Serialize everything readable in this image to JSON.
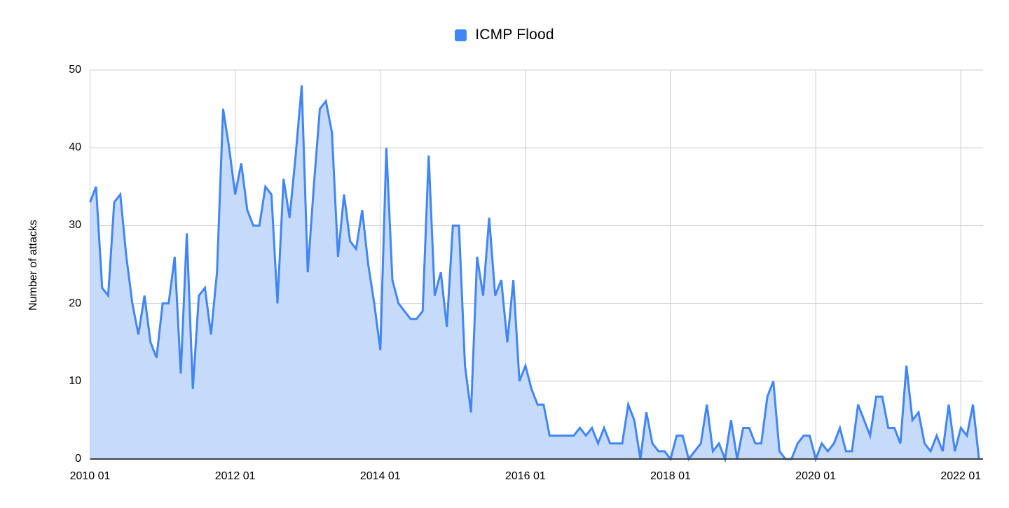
{
  "legend": {
    "label": "ICMP Flood",
    "swatch_color": "#4285f4"
  },
  "y_axis": {
    "title": "Number of attacks",
    "ticks": [
      0,
      10,
      20,
      30,
      40,
      50
    ]
  },
  "x_axis": {
    "ticks": [
      "2010 01",
      "2012 01",
      "2014 01",
      "2016 01",
      "2018 01",
      "2020 01",
      "2022 01"
    ]
  },
  "colors": {
    "line": "#4285f4",
    "fill": "#c6dafc",
    "grid": "#cccccc",
    "baseline": "#424242",
    "text": "#000000"
  },
  "chart_data": {
    "type": "area",
    "title": "ICMP Flood",
    "xlabel": "",
    "ylabel": "Number of attacks",
    "ylim": [
      0,
      50
    ],
    "grid": true,
    "legend_position": "top-center",
    "x_start": "2010-01",
    "x_end": "2022-04",
    "x_interval": "monthly",
    "x_tick_every_months": 24,
    "x_tick_labels": [
      "2010 01",
      "2012 01",
      "2014 01",
      "2016 01",
      "2018 01",
      "2020 01",
      "2022 01"
    ],
    "series": [
      {
        "name": "ICMP Flood",
        "color": "#4285f4",
        "fill": "#c6dafc",
        "values": [
          33,
          35,
          22,
          21,
          33,
          34,
          26,
          20,
          16,
          21,
          15,
          13,
          20,
          20,
          26,
          11,
          29,
          9,
          21,
          22,
          16,
          24,
          45,
          40,
          34,
          38,
          32,
          30,
          30,
          35,
          34,
          20,
          36,
          31,
          39,
          48,
          24,
          35,
          45,
          46,
          42,
          26,
          34,
          28,
          27,
          32,
          25,
          20,
          14,
          40,
          23,
          20,
          19,
          18,
          18,
          19,
          39,
          21,
          24,
          17,
          30,
          30,
          12,
          6,
          26,
          21,
          31,
          21,
          23,
          15,
          23,
          10,
          12,
          9,
          7,
          7,
          3,
          3,
          3,
          3,
          3,
          4,
          3,
          4,
          2,
          4,
          2,
          2,
          2,
          7,
          5,
          0,
          6,
          2,
          1,
          1,
          0,
          3,
          3,
          0,
          1,
          2,
          7,
          1,
          2,
          0,
          5,
          0,
          4,
          4,
          2,
          2,
          8,
          10,
          1,
          0,
          0,
          2,
          3,
          3,
          0,
          2,
          1,
          2,
          4,
          1,
          1,
          7,
          5,
          3,
          8,
          8,
          4,
          4,
          2,
          12,
          5,
          6,
          2,
          1,
          3,
          1,
          7,
          1,
          4,
          3,
          7,
          0
        ]
      }
    ]
  }
}
